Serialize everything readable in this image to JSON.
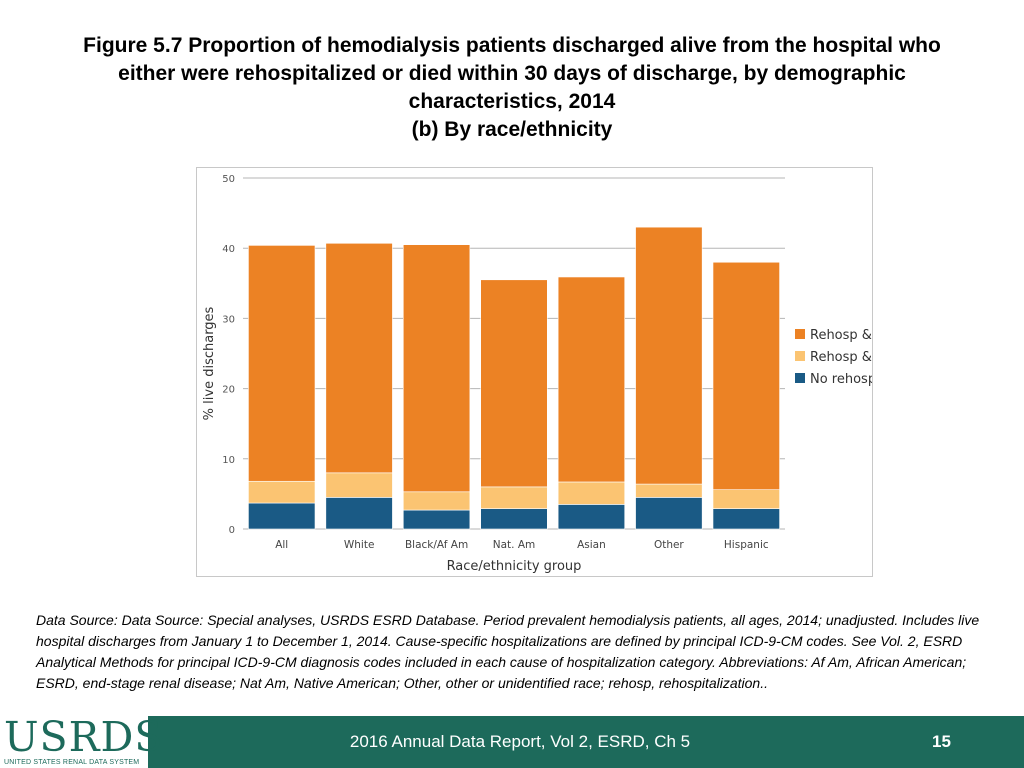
{
  "slide": {
    "title_line1": "Figure 5.7 Proportion of hemodialysis patients discharged alive from the hospital who",
    "title_line2": "either were rehospitalized or died within 30 days of discharge, by demographic",
    "title_line3": "characteristics, 2014",
    "title_line4": "(b) By race/ethnicity"
  },
  "chart_data": {
    "type": "bar",
    "stacked": true,
    "categories": [
      "All",
      "White",
      "Black/Af Am",
      "Nat. Am",
      "Asian",
      "Other",
      "Hispanic"
    ],
    "series": [
      {
        "name": "No rehosp & died",
        "color": "#1a5a85",
        "values": [
          3.7,
          4.5,
          2.7,
          2.9,
          3.5,
          4.5,
          2.9
        ]
      },
      {
        "name": "Rehosp & died",
        "color": "#fbc472",
        "values": [
          3.1,
          3.5,
          2.6,
          3.1,
          3.2,
          1.9,
          2.7
        ]
      },
      {
        "name": "Rehosp & alive",
        "color": "#ec8224",
        "values": [
          33.6,
          32.7,
          35.2,
          29.5,
          29.2,
          36.6,
          32.4
        ]
      }
    ],
    "legend_order": [
      "Rehosp & alive",
      "Rehosp & died",
      "No rehosp & died"
    ],
    "legend_position": "right",
    "xlabel": "Race/ethnicity group",
    "ylabel": "% live discharges",
    "ylim": [
      0,
      50
    ],
    "yticks": [
      0,
      10,
      20,
      30,
      40,
      50
    ],
    "grid": true
  },
  "source_note": "Data Source: Data Source: Special analyses, USRDS ESRD Database. Period prevalent hemodialysis patients, all ages, 2014; unadjusted. Includes live hospital discharges from January 1 to December 1, 2014. Cause-specific hospitalizations are defined by principal ICD-9-CM codes. See Vol. 2, ESRD Analytical Methods for principal ICD-9-CM diagnosis codes included in each cause of hospitalization category. Abbreviations: Af Am, African American; ESRD, end-stage renal disease; Nat Am, Native American; Other, other or unidentified race; rehosp, rehospitalization..",
  "footer": {
    "logo_text": "USRDS",
    "logo_subtext": "UNITED STATES RENAL DATA SYSTEM",
    "report_label": "2016 Annual Data Report, Vol 2, ESRD, Ch 5",
    "page_number": "15"
  }
}
